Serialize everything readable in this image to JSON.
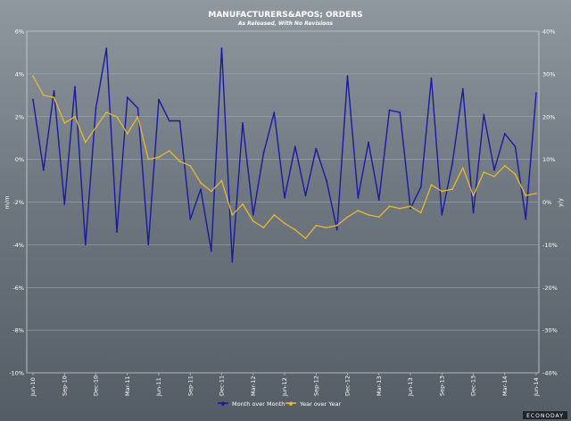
{
  "chart_data": {
    "type": "line",
    "title": "MANUFACTURERS&APOS; ORDERS",
    "subtitle": "As Released, With No Revisions",
    "ylabel_left": "m/m",
    "ylabel_right": "y/y",
    "ylim_left": [
      -10,
      6
    ],
    "ylim_right": [
      -40,
      40
    ],
    "yticks_left": [
      "6%",
      "4%",
      "2%",
      "0%",
      "-2%",
      "-4%",
      "-6%",
      "-8%",
      "-10%"
    ],
    "yticks_right": [
      "40%",
      "30%",
      "20%",
      "10%",
      "0%",
      "-10%",
      "-20%",
      "-30%",
      "-40%"
    ],
    "xtick_labels": [
      "Jun-10",
      "Sep-10",
      "Dec-10",
      "Mar-11",
      "Jun-11",
      "Sep-11",
      "Dec-11",
      "Mar-12",
      "Jun-12",
      "Sep-12",
      "Dec-12",
      "Mar-13",
      "Jun-13",
      "Sep-13",
      "Dec-13",
      "Mar-14",
      "Jun-14"
    ],
    "series": [
      {
        "name": "Month over Month",
        "axis": "left",
        "color": "#1a1aa0",
        "values": [
          2.8,
          -0.5,
          3.2,
          -2.1,
          3.4,
          -4.0,
          2.4,
          5.2,
          -3.4,
          2.9,
          2.4,
          -4.0,
          2.8,
          1.8,
          1.8,
          -2.8,
          -1.4,
          -4.3,
          5.2,
          -4.8,
          1.7,
          -2.6,
          0.3,
          2.2,
          -1.8,
          0.6,
          -1.7,
          0.5,
          -1.0,
          -3.3,
          3.9,
          -1.8,
          0.8,
          -1.9,
          2.3,
          2.2,
          -2.3,
          -1.3,
          3.8,
          -2.6,
          -0.2,
          3.3,
          -2.5,
          2.1,
          -0.5,
          1.2,
          0.6,
          -2.8,
          3.1
        ]
      },
      {
        "name": "Year over Year",
        "axis": "right",
        "color": "#e8b830",
        "values": [
          29.5,
          25.0,
          24.5,
          18.5,
          20.0,
          14.0,
          17.5,
          21.0,
          20.0,
          16.0,
          20.0,
          10.0,
          10.5,
          12.0,
          9.5,
          8.5,
          4.5,
          2.5,
          5.0,
          -3.0,
          -0.5,
          -4.5,
          -6.0,
          -3.0,
          -5.0,
          -6.5,
          -8.5,
          -5.5,
          -6.0,
          -5.5,
          -3.5,
          -2.0,
          -3.0,
          -3.5,
          -1.0,
          -1.5,
          -1.0,
          -2.5,
          4.0,
          2.5,
          3.0,
          8.0,
          1.5,
          7.0,
          6.0,
          8.5,
          6.5,
          1.5,
          2.0
        ]
      }
    ],
    "legend": [
      "Month over Month",
      "Year over Year"
    ],
    "legend_position": "bottom-center",
    "grid": true
  },
  "brand": "ECONODAY"
}
